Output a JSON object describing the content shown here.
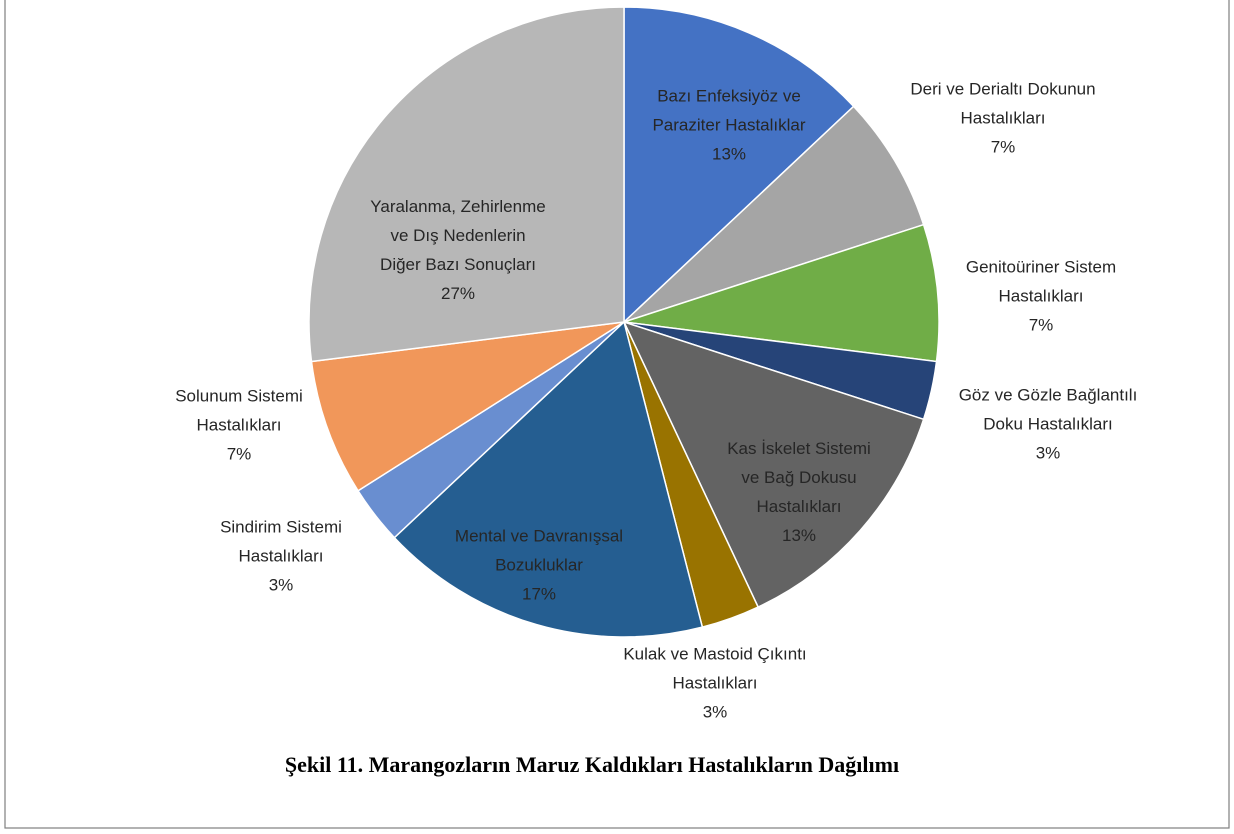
{
  "chart_data": {
    "type": "pie",
    "caption": "Şekil 11. Marangozların Maruz Kaldıkları Hastalıkların Dağılımı",
    "categories": [
      "Bazı Enfeksiyöz ve Paraziter Hastalıklar",
      "Deri ve Derialtı Dokunun Hastalıkları",
      "Genitoüriner Sistem Hastalıkları",
      "Göz ve Gözle Bağlantılı Doku Hastalıkları",
      "Kas İskelet Sistemi ve Bağ Dokusu Hastalıkları",
      "Kulak ve Mastoid Çıkıntı Hastalıkları",
      "Mental ve Davranışsal Bozukluklar",
      "Sindirim Sistemi Hastalıkları",
      "Solunum Sistemi Hastalıkları",
      "Yaralanma, Zehirlenme ve Dış Nedenlerin Diğer Bazı Sonuçları"
    ],
    "values": [
      13,
      7,
      7,
      3,
      13,
      3,
      17,
      3,
      7,
      27
    ],
    "value_labels": [
      "13%",
      "7%",
      "7%",
      "3%",
      "13%",
      "3%",
      "17%",
      "3%",
      "7%",
      "27%"
    ],
    "colors": [
      "#4472c4",
      "#a5a5a5",
      "#70ad47",
      "#264478",
      "#636363",
      "#997300",
      "#255e91",
      "#698ed0",
      "#f1975a",
      "#b7b7b7"
    ]
  }
}
